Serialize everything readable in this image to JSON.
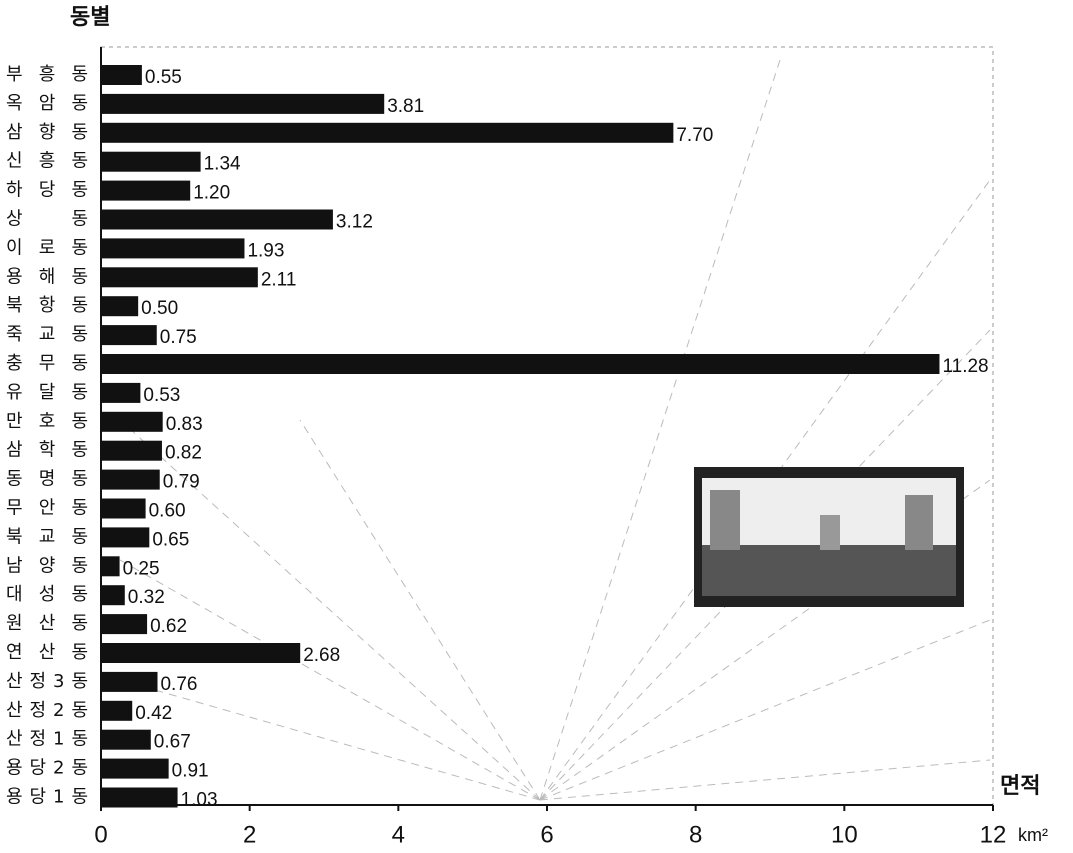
{
  "chart_data": {
    "type": "bar",
    "orientation": "horizontal",
    "y_title": "동별",
    "x_title": "면적",
    "x_unit": "km²",
    "categories": [
      "부흥동",
      "옥암동",
      "삼향동",
      "신흥동",
      "하당동",
      "상동",
      "이로동",
      "용해동",
      "북항동",
      "죽교동",
      "충무동",
      "유달동",
      "만호동",
      "삼학동",
      "동명동",
      "무안동",
      "북교동",
      "남양동",
      "대성동",
      "원산동",
      "연산동",
      "산정3동",
      "산정2동",
      "산정1동",
      "용당2동",
      "용당1동"
    ],
    "values": [
      0.55,
      3.81,
      7.7,
      1.34,
      1.2,
      3.12,
      1.93,
      2.11,
      0.5,
      0.75,
      11.28,
      0.53,
      0.83,
      0.82,
      0.79,
      0.6,
      0.65,
      0.25,
      0.32,
      0.62,
      2.68,
      0.76,
      0.42,
      0.67,
      0.91,
      1.03
    ],
    "value_labels": [
      "0.55",
      "3.81",
      "7.70",
      "1.34",
      "1.20",
      "3.12",
      "1.93",
      "2.11",
      "0.50",
      "0.75",
      "11.28",
      "0.53",
      "0.83",
      "0.82",
      "0.79",
      "0.60",
      "0.65",
      "0.25",
      "0.32",
      "0.62",
      "2.68",
      "0.76",
      "0.42",
      "0.67",
      "0.91",
      "1.03"
    ],
    "color": "#111111",
    "xlim": [
      0,
      12
    ],
    "xticks": [
      0,
      2,
      4,
      6,
      8,
      10,
      12
    ]
  }
}
